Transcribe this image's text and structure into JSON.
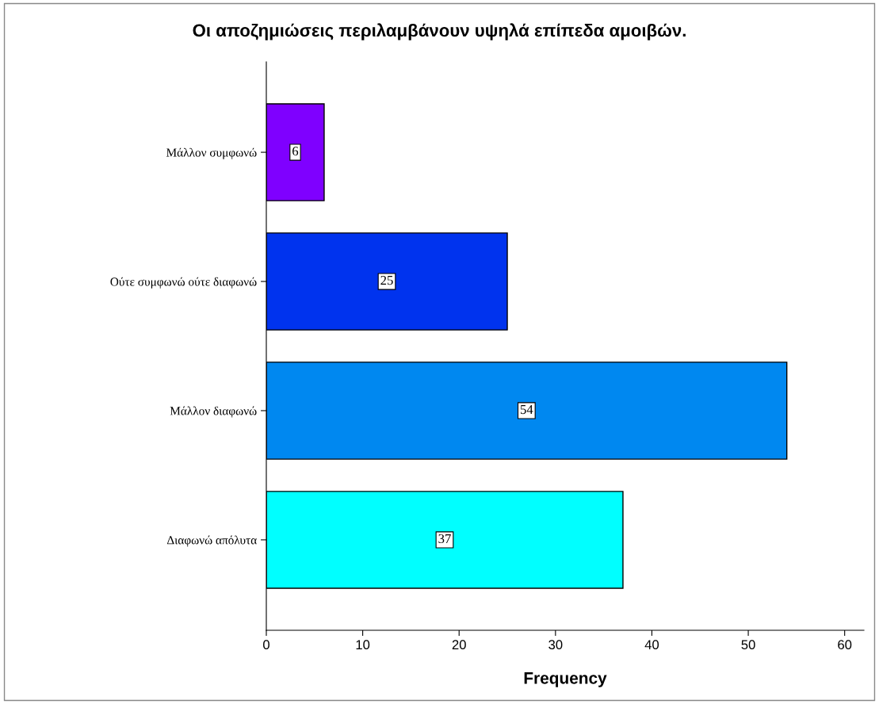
{
  "chart_data": {
    "type": "bar",
    "orientation": "horizontal",
    "title": "Οι αποζημιώσεις περιλαμβάνουν υψηλά επίπεδα αμοιβών.",
    "xlabel": "Frequency",
    "categories": [
      "Μάλλον συμφωνώ",
      "Ούτε συμφωνώ ούτε διαφωνώ",
      "Μάλλον διαφωνώ",
      "Διαφωνώ απόλυτα"
    ],
    "values": [
      6,
      25,
      54,
      37
    ],
    "colors": [
      "#7f00ff",
      "#0033ee",
      "#0088f0",
      "#00ffff"
    ],
    "xlim": [
      0,
      62
    ],
    "xticks": [
      0,
      10,
      20,
      30,
      40,
      50,
      60
    ],
    "data_labels": true,
    "grid": false,
    "legend": false
  }
}
